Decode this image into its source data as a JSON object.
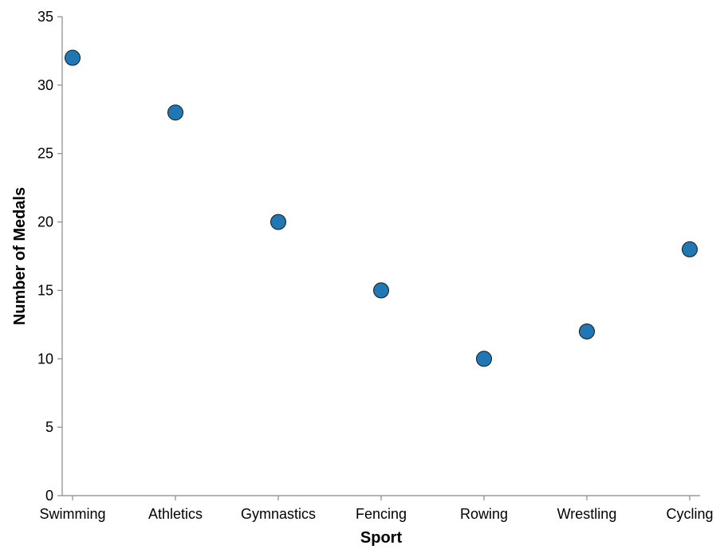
{
  "chart_data": {
    "type": "scatter",
    "title": "",
    "xlabel": "Sport",
    "ylabel": "Number of Medals",
    "categories": [
      "Swimming",
      "Athletics",
      "Gymnastics",
      "Fencing",
      "Rowing",
      "Wrestling",
      "Cycling"
    ],
    "values": [
      32,
      28,
      20,
      15,
      10,
      12,
      18
    ],
    "ylim": [
      0,
      35
    ],
    "yticks": [
      0,
      5,
      10,
      15,
      20,
      25,
      30,
      35
    ],
    "grid": false,
    "legend": "none",
    "point_color": "#1f77b4"
  }
}
